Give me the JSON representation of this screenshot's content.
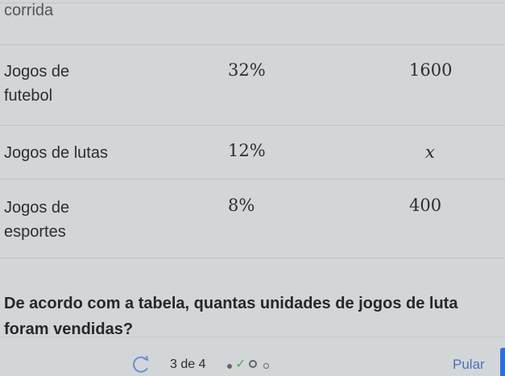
{
  "table": {
    "top_cut_text": "corrida",
    "rows": [
      {
        "category": "Jogos de futebol",
        "category_lines": [
          "Jogos de",
          "futebol"
        ],
        "percent": "32%",
        "units": "1600"
      },
      {
        "category": "Jogos de lutas",
        "category_lines": [
          "Jogos de lutas"
        ],
        "percent": "12%",
        "units": "x"
      },
      {
        "category": "Jogos de esportes",
        "category_lines": [
          "Jogos de",
          "esportes"
        ],
        "percent": "8%",
        "units": "400"
      }
    ]
  },
  "question": {
    "lines": [
      "De acordo com a tabela, quantas unidades de jogos de luta",
      "foram vendidas?"
    ]
  },
  "footer": {
    "progress_text": "3 de 4",
    "skip_label": "Pular",
    "accent_color": "#2d6fd6",
    "check_color": "#4caf50"
  }
}
